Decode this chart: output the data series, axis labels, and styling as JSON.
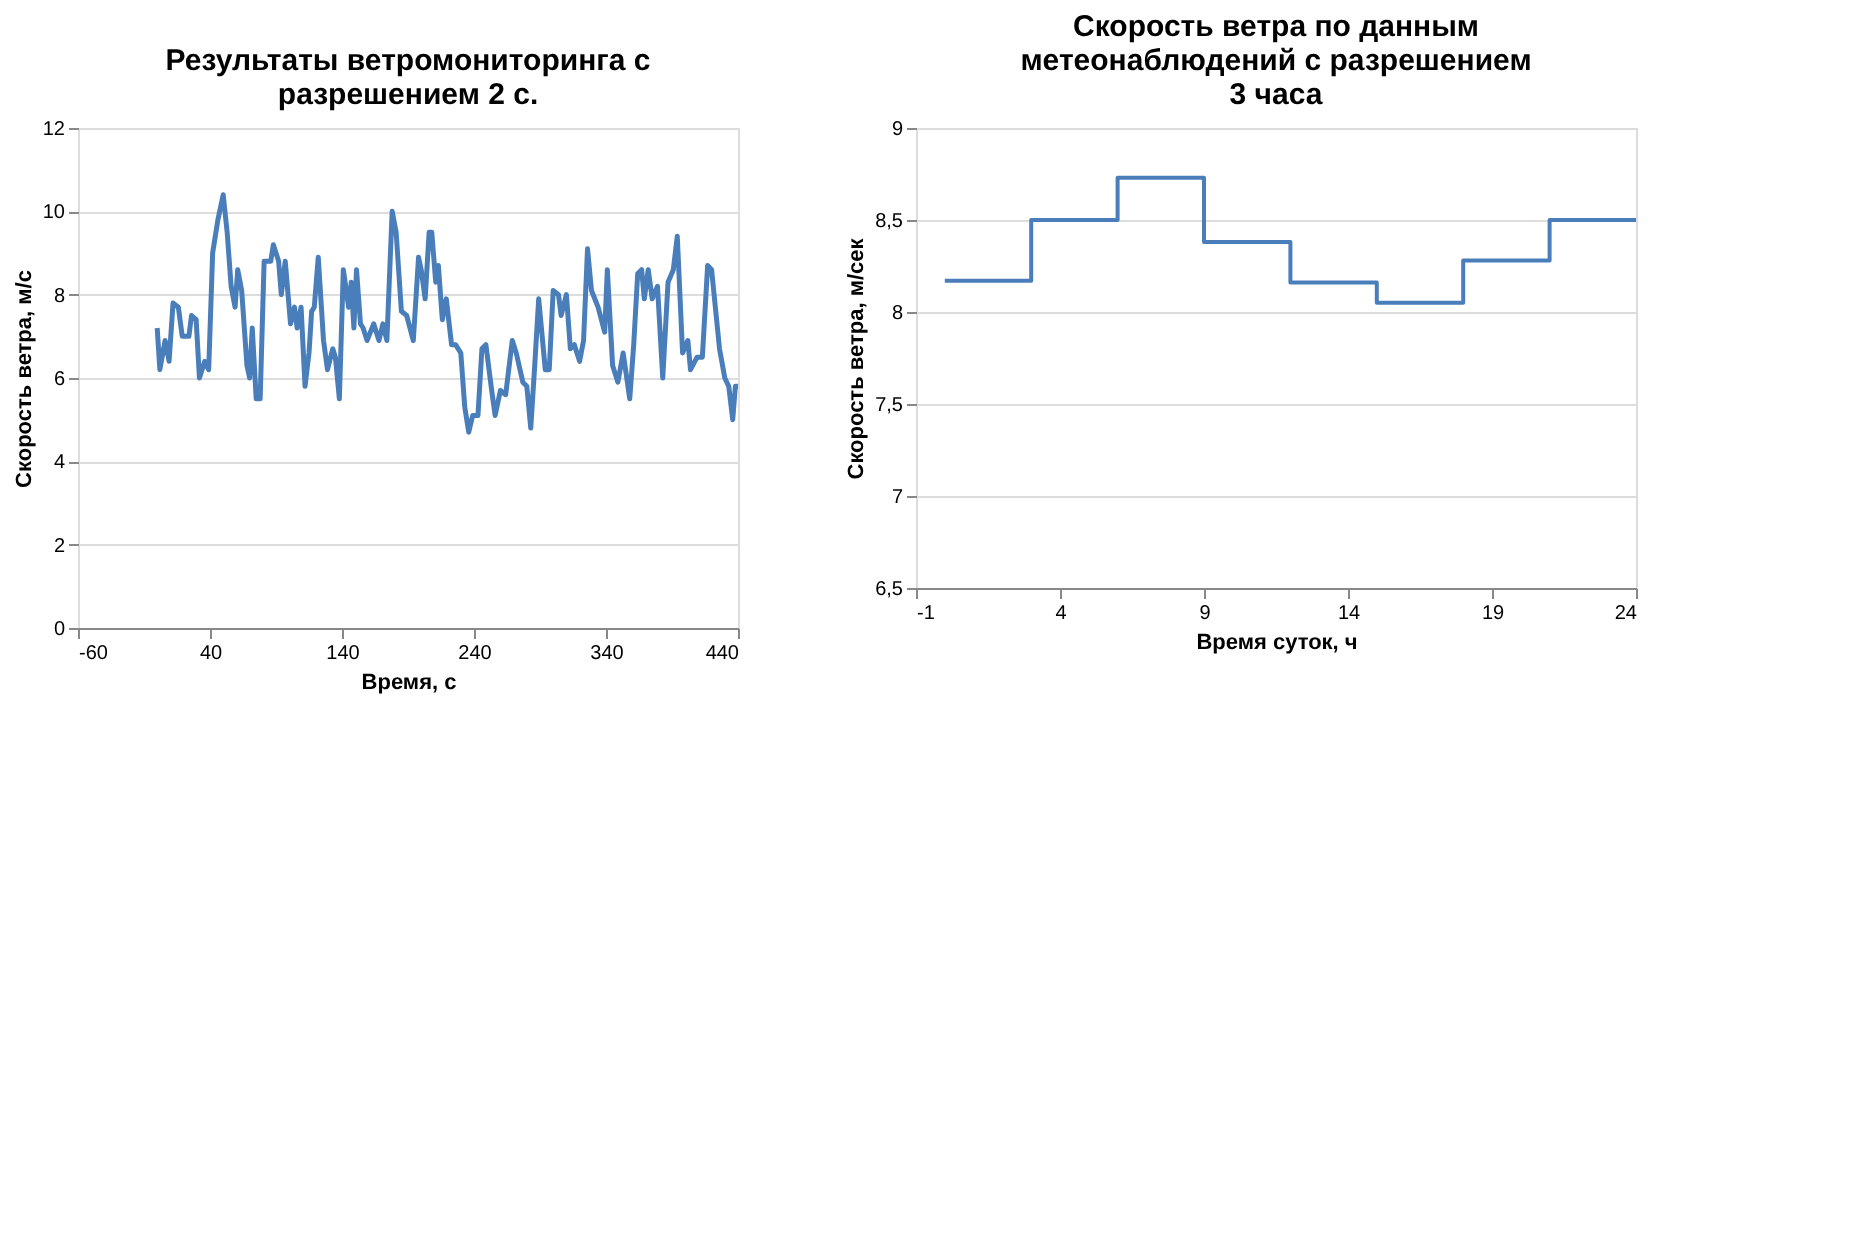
{
  "chart_data": [
    {
      "type": "line",
      "title": "Результаты ветромониторинга с разрешением 2 с.",
      "xlabel": "Время, с",
      "ylabel": "Скорость ветра, м/с",
      "xlim": [
        -60,
        440
      ],
      "xticks": [
        -60,
        40,
        140,
        240,
        340,
        440
      ],
      "ylim": [
        0,
        12
      ],
      "yticks": [
        0,
        2,
        4,
        6,
        8,
        10,
        12
      ],
      "grid": "y",
      "marker": "none",
      "line_style": "solid",
      "x": [
        0,
        2,
        6,
        9,
        12,
        16,
        19,
        24,
        26,
        29.5,
        32,
        36,
        39,
        42,
        46,
        50,
        53,
        56,
        59,
        61,
        64,
        68,
        70,
        72,
        75,
        78,
        81,
        86,
        88,
        92,
        94,
        97,
        101,
        104,
        106,
        109,
        112,
        115,
        117,
        119,
        122,
        126,
        129,
        133,
        135,
        138,
        141,
        145,
        147,
        149,
        151,
        154,
        156,
        159,
        164,
        168,
        171,
        174,
        178,
        181,
        185,
        189,
        194,
        198,
        200,
        203,
        206,
        208,
        211,
        213,
        216,
        219,
        223,
        226,
        230,
        233,
        236,
        239,
        243,
        246,
        249,
        253,
        256,
        260,
        264,
        269,
        272,
        277,
        280,
        283,
        286,
        289,
        294,
        297,
        300,
        304,
        306,
        310,
        313,
        316,
        320,
        323,
        326,
        329,
        334,
        339,
        341,
        345,
        349,
        353,
        358,
        361,
        364,
        367,
        369,
        372,
        375,
        379,
        383,
        387,
        391,
        394,
        398,
        402,
        404,
        409,
        413,
        417,
        420,
        426,
        430,
        433,
        436,
        438,
        440
      ],
      "series": [
        {
          "color": "#4a7ebb",
          "values": [
            7.2,
            6.2,
            6.9,
            6.4,
            7.8,
            7.7,
            7.0,
            7.0,
            7.5,
            7.4,
            6.0,
            6.4,
            6.2,
            9.0,
            9.8,
            10.4,
            9.5,
            8.2,
            7.7,
            8.6,
            8.1,
            6.3,
            6.0,
            7.2,
            5.5,
            5.5,
            8.8,
            8.8,
            9.2,
            8.8,
            8.0,
            8.8,
            7.3,
            7.7,
            7.2,
            7.7,
            5.8,
            6.6,
            7.6,
            7.7,
            8.9,
            6.9,
            6.2,
            6.7,
            6.5,
            5.5,
            8.6,
            7.7,
            8.3,
            7.2,
            8.6,
            7.3,
            7.2,
            6.9,
            7.3,
            6.9,
            7.3,
            6.9,
            10.0,
            9.5,
            7.6,
            7.5,
            6.9,
            8.9,
            8.6,
            7.9,
            9.5,
            9.5,
            8.3,
            8.7,
            7.4,
            7.9,
            6.8,
            6.8,
            6.6,
            5.3,
            4.7,
            5.1,
            5.1,
            6.7,
            6.8,
            5.8,
            5.1,
            5.7,
            5.6,
            6.9,
            6.6,
            5.9,
            5.8,
            4.8,
            6.3,
            7.9,
            6.2,
            6.2,
            8.1,
            8.0,
            7.5,
            8.0,
            6.7,
            6.8,
            6.4,
            6.9,
            9.1,
            8.1,
            7.7,
            7.1,
            8.6,
            6.3,
            5.9,
            6.6,
            5.5,
            6.8,
            8.5,
            8.6,
            7.9,
            8.6,
            7.9,
            8.2,
            6.0,
            8.3,
            8.6,
            9.4,
            6.6,
            6.9,
            6.2,
            6.5,
            6.5,
            8.7,
            8.6,
            6.7,
            6.0,
            5.8,
            5.0,
            5.8,
            5.8
          ]
        }
      ]
    },
    {
      "type": "step",
      "title": "Скорость ветра по данным метеонаблюдений с разрешением 3 часа",
      "xlabel": "Время суток, ч",
      "ylabel": "Скорость ветра, м/сек",
      "xlim": [
        -1,
        24
      ],
      "xticks": [
        -1,
        4,
        9,
        14,
        19,
        24
      ],
      "ylim": [
        6.5,
        9
      ],
      "yticks": [
        {
          "value": 6.5,
          "label": "6,5"
        },
        7,
        {
          "value": 7.5,
          "label": "7,5"
        },
        8,
        {
          "value": 8.5,
          "label": "8,5"
        },
        9
      ],
      "grid": "y",
      "marker": "none",
      "line_style": "solid",
      "x": [
        0,
        3,
        6,
        9,
        12,
        15,
        18,
        21,
        24
      ],
      "series": [
        {
          "color": "#4a7ebb",
          "values": [
            8.17,
            8.5,
            8.73,
            8.38,
            8.16,
            8.05,
            8.28,
            8.5,
            8.5
          ]
        }
      ]
    }
  ]
}
